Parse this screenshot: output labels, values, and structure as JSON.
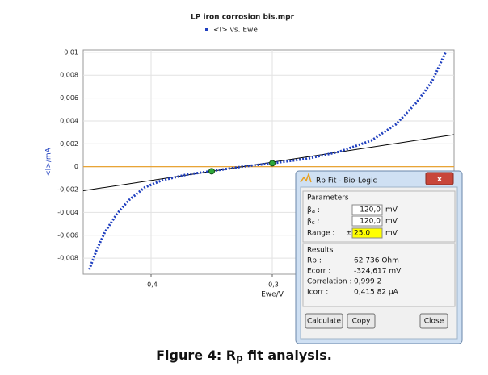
{
  "chart_data": {
    "type": "line",
    "title": "LP iron corrosion bis.mpr",
    "x_label": "Ewe/V",
    "y_label": "<I>/mA",
    "xlim": [
      -0.456,
      -0.15
    ],
    "xticks": [
      {
        "value": -0.4,
        "label": "-0,4"
      },
      {
        "value": -0.3,
        "label": "-0,3"
      }
    ],
    "ylim": [
      -0.0094,
      0.0102
    ],
    "yticks": [
      {
        "value": 0.01,
        "label": "0,01"
      },
      {
        "value": 0.008,
        "label": "0,008"
      },
      {
        "value": 0.006,
        "label": "0,006"
      },
      {
        "value": 0.004,
        "label": "0,004"
      },
      {
        "value": 0.002,
        "label": "0,002"
      },
      0,
      {
        "value": -0.002,
        "label": "-0,002"
      },
      {
        "value": -0.004,
        "label": "-0,004"
      },
      {
        "value": -0.006,
        "label": "-0,006"
      },
      {
        "value": -0.008,
        "label": "-0,008"
      }
    ],
    "grid": true,
    "series": [
      {
        "name": "<I> vs. Ewe",
        "color": "#1f3fbf",
        "x": [
          -0.451,
          -0.445,
          -0.438,
          -0.428,
          -0.418,
          -0.405,
          -0.391,
          -0.371,
          -0.351,
          -0.325,
          -0.3,
          -0.271,
          -0.245,
          -0.218,
          -0.198,
          -0.181,
          -0.168,
          -0.157
        ],
        "values": [
          -0.009,
          -0.0073,
          -0.0057,
          -0.0041,
          -0.0029,
          -0.0018,
          -0.0012,
          -0.0007,
          -0.0004,
          0,
          0.0003,
          0.0007,
          0.0013,
          0.0023,
          0.0037,
          0.0056,
          0.0075,
          0.01
        ]
      },
      {
        "color": "#000000",
        "x": [
          -0.456,
          -0.15
        ],
        "values": [
          -0.0021,
          0.0028
        ]
      }
    ],
    "zero_line": {
      "value": 0,
      "color": "#e89a1c"
    },
    "fit_points": {
      "color": "#2ea83a",
      "x": [
        -0.35,
        -0.3
      ],
      "values": [
        -0.0004,
        0.0003
      ]
    }
  },
  "dialog": {
    "title": "Rp Fit - Bio-Logic",
    "parameters": {
      "heading": "Parameters",
      "rows": [
        {
          "label": "β",
          "sub": "a",
          "sep": " :",
          "value": "120,0",
          "unit": "mV"
        },
        {
          "label": "β",
          "sub": "c",
          "sep": " :",
          "value": "120,0",
          "unit": "mV"
        },
        {
          "label": "Range :",
          "prefix": "±",
          "value": "25,0",
          "unit": "mV"
        }
      ]
    },
    "results": {
      "heading": "Results",
      "rows": [
        {
          "label": "Rp :",
          "value": "62 736 Ohm"
        },
        {
          "label": "Ecorr :",
          "value": "-324,617 mV"
        },
        {
          "label": "Correlation :",
          "value": "0,999 2"
        },
        {
          "label": "Icorr :",
          "value": "0,415 82 µA"
        }
      ]
    },
    "buttons": [
      "Calculate",
      "Copy",
      "Close"
    ]
  },
  "caption": {
    "before": "Figure 4: R",
    "sub": "p",
    "after": " fit analysis."
  }
}
